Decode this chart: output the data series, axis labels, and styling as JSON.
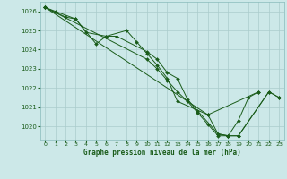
{
  "title": "",
  "xlabel": "Graphe pression niveau de la mer (hPa)",
  "ylabel": "",
  "bg_color": "#cce8e8",
  "grid_color": "#aacccc",
  "line_color": "#1a5c1a",
  "xlim": [
    -0.5,
    23.5
  ],
  "ylim": [
    1019.3,
    1026.5
  ],
  "yticks": [
    1020,
    1021,
    1022,
    1023,
    1024,
    1025,
    1026
  ],
  "xticks": [
    0,
    1,
    2,
    3,
    4,
    5,
    6,
    7,
    8,
    9,
    10,
    11,
    12,
    13,
    14,
    15,
    16,
    17,
    18,
    19,
    20,
    21,
    22,
    23
  ],
  "series": [
    {
      "x": [
        0,
        1,
        3,
        5,
        6,
        8,
        9,
        10,
        11,
        12,
        13,
        16,
        21
      ],
      "y": [
        1026.2,
        1026.0,
        1025.6,
        1024.3,
        1024.7,
        1025.0,
        1024.4,
        1023.8,
        1023.2,
        1022.5,
        1021.3,
        1020.6,
        1021.8
      ]
    },
    {
      "x": [
        0,
        2,
        3,
        4,
        6,
        7,
        10,
        11,
        12,
        13,
        14,
        15,
        17,
        18,
        19,
        22,
        23
      ],
      "y": [
        1026.2,
        1025.7,
        1025.6,
        1024.9,
        1024.7,
        1024.7,
        1023.9,
        1023.5,
        1022.8,
        1022.5,
        1021.4,
        1020.8,
        1019.6,
        1019.5,
        1019.5,
        1021.8,
        1021.5
      ]
    },
    {
      "x": [
        0,
        10,
        11,
        12,
        13,
        14,
        15,
        16,
        17,
        18,
        19,
        22,
        23
      ],
      "y": [
        1026.2,
        1023.5,
        1023.0,
        1022.4,
        1021.8,
        1021.3,
        1020.7,
        1020.1,
        1019.5,
        1019.5,
        1019.5,
        1021.8,
        1021.5
      ]
    },
    {
      "x": [
        0,
        16,
        17,
        18,
        19,
        20,
        21
      ],
      "y": [
        1026.2,
        1020.6,
        1019.6,
        1019.5,
        1020.3,
        1021.5,
        1021.8
      ]
    }
  ]
}
